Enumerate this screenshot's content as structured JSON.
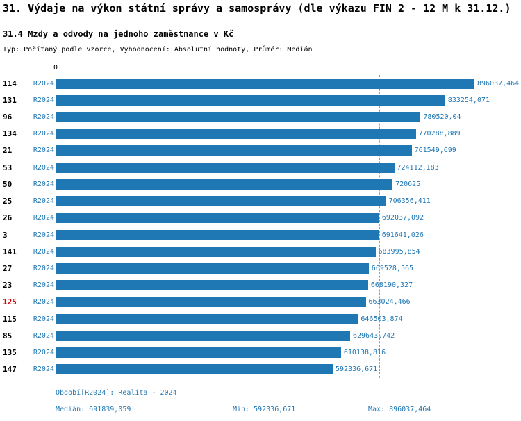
{
  "title": "31. Výdaje na výkon státní správy a samosprávy (dle výkazu FIN 2 - 12 M k 31.12.)",
  "subtitle": "31.4 Mzdy a odvody na jednoho zaměstnance v Kč",
  "meta": "Typ: Počítaný podle vzorce, Vyhodnocení: Absolutní hodnoty, Průměr: Medián",
  "axis": {
    "zero_label": "0"
  },
  "chart_data": {
    "type": "bar",
    "orientation": "horizontal",
    "series_label": "R2024",
    "categories": [
      "114",
      "131",
      "96",
      "134",
      "21",
      "53",
      "50",
      "25",
      "26",
      "3",
      "141",
      "27",
      "23",
      "125",
      "115",
      "85",
      "135",
      "147"
    ],
    "values": [
      896037.464,
      833254.071,
      780520.04,
      770288.889,
      761549.699,
      724112.183,
      720625,
      706356.411,
      692037.092,
      691641.026,
      683995.854,
      669528.565,
      668190.327,
      663024.466,
      646503.874,
      629643.742,
      610138.816,
      592336.671
    ],
    "value_labels": [
      "896037,464",
      "833254,071",
      "780520,04",
      "770288,889",
      "761549,699",
      "724112,183",
      "720625",
      "706356,411",
      "692037,092",
      "691641,026",
      "683995,854",
      "669528,565",
      "668190,327",
      "663024,466",
      "646503,874",
      "629643,742",
      "610138,816",
      "592336,671"
    ],
    "highlighted_category": "125",
    "xlim": [
      0,
      896037.464
    ],
    "median": 691839.059,
    "min": 592336.671,
    "max": 896037.464,
    "bar_color": "#1f77b4",
    "highlight_color": "#cc0000",
    "legend_position": "none",
    "grid": "median-dashed-line-only"
  },
  "footer": {
    "period": "Období[R2024]: Realita - 2024",
    "median": "Medián: 691839,059",
    "min": "Min: 592336,671",
    "max": "Max: 896037,464"
  }
}
